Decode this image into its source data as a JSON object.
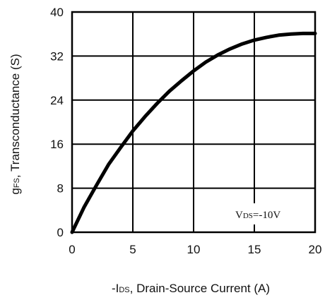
{
  "chart_data": {
    "type": "line",
    "x": [
      0,
      1,
      2,
      3,
      4,
      5,
      6,
      7,
      8,
      9,
      10,
      11,
      12,
      13,
      14,
      15,
      16,
      17,
      18,
      19,
      20
    ],
    "series": [
      {
        "values": [
          0,
          4.6,
          8.5,
          12.3,
          15.4,
          18.4,
          21.0,
          23.4,
          25.6,
          27.5,
          29.3,
          30.9,
          32.2,
          33.3,
          34.2,
          34.9,
          35.4,
          35.8,
          36.0,
          36.1,
          36.1
        ]
      }
    ],
    "xlim": [
      0,
      20
    ],
    "ylim": [
      0,
      40
    ],
    "xticks": [
      "0",
      "5",
      "10",
      "15",
      "20"
    ],
    "yticks": [
      "0",
      "8",
      "16",
      "24",
      "32",
      "40"
    ],
    "xlabel": {
      "prefix": "-I",
      "sub": "DS",
      "rest": ", Drain-Source Current (A)"
    },
    "ylabel": {
      "prefix": "g",
      "sub": "FS",
      "rest": ", Transconductance (S)"
    },
    "annotation": {
      "prefix": "V",
      "sub": "DS",
      "rest": "=-10V"
    },
    "grid": true
  }
}
